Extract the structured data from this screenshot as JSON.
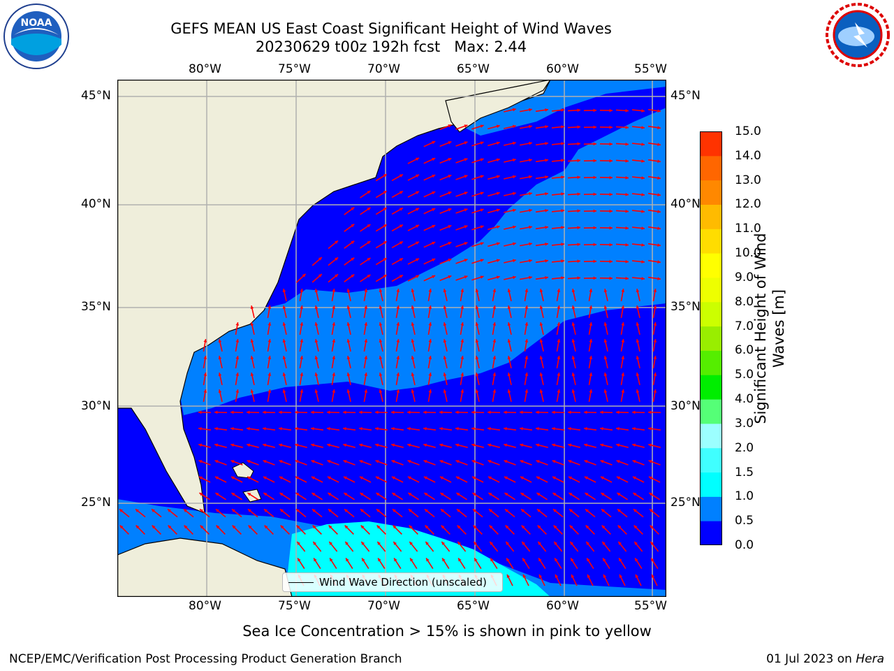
{
  "header": {
    "title_line1": "GEFS MEAN US East Coast Significant Height of Wind Waves",
    "title_line2": "20230629 t00z 192h fcst   Max: 2.44"
  },
  "map": {
    "lon_ticks": [
      "80°W",
      "75°W",
      "70°W",
      "65°W",
      "60°W",
      "55°W"
    ],
    "lat_ticks": [
      "45°N",
      "40°N",
      "35°N",
      "30°N",
      "25°N"
    ],
    "colors": {
      "land": "#efeedb",
      "wave_0_0_5": "#0000ff",
      "wave_0_5_1": "#0080ff",
      "wave_1_1_5": "#00ffff",
      "arrow": "#ff0000",
      "grid": "#b0b0b0"
    }
  },
  "legend": {
    "label": "Wind Wave Direction (unscaled)"
  },
  "colorbar": {
    "label_line1": "Significant Height of Wind",
    "label_line2": "Waves [m]",
    "ticks": [
      "15.0",
      "14.0",
      "13.0",
      "12.0",
      "11.0",
      "10.0",
      "9.0",
      "8.0",
      "7.0",
      "6.0",
      "5.0",
      "4.0",
      "3.0",
      "2.0",
      "1.5",
      "1.0",
      "0.5",
      "0.0"
    ],
    "colors": [
      "#0000ff",
      "#0080ff",
      "#00ffff",
      "#40ffff",
      "#9cffff",
      "#55ff77",
      "#00ee00",
      "#55ee00",
      "#99ee00",
      "#ccff00",
      "#eeff00",
      "#ffff00",
      "#ffdd00",
      "#ffbb00",
      "#ff8800",
      "#ff6600",
      "#ff3300"
    ]
  },
  "footer": {
    "sea_ice_note": "Sea Ice Concentration > 15% is shown in pink to yellow",
    "credit": "NCEP/EMC/Verification Post Processing Product Generation Branch",
    "date": "01 Jul 2023 on ",
    "machine": "Hera"
  },
  "logos": {
    "left": "noaa-logo",
    "right": "nws-logo"
  }
}
